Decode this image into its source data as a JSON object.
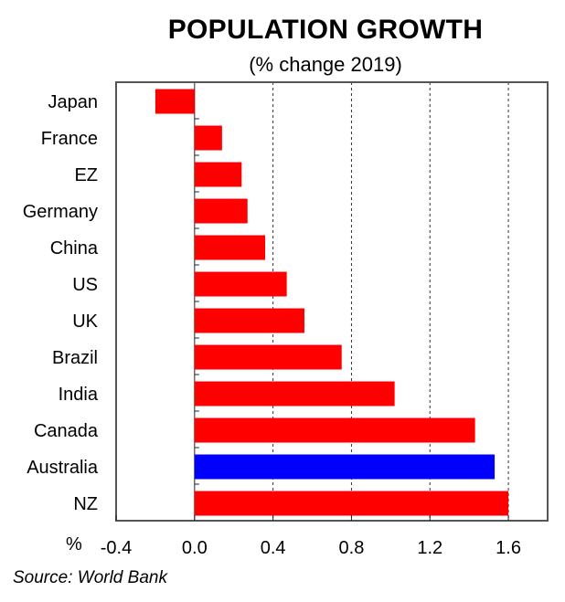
{
  "title": "POPULATION GROWTH",
  "subtitle": "(% change 2019)",
  "source": "Source: World Bank",
  "chart_data": {
    "type": "bar",
    "orientation": "horizontal",
    "title": "POPULATION GROWTH",
    "subtitle": "(% change 2019)",
    "xlabel": "%",
    "ylabel": "",
    "xlim": [
      -0.4,
      1.8
    ],
    "xticks": [
      -0.4,
      0.0,
      0.4,
      0.8,
      1.2,
      1.6
    ],
    "xtick_labels": [
      "-0.4",
      "0.0",
      "0.4",
      "0.8",
      "1.2",
      "1.6"
    ],
    "grid": "vertical dashed",
    "categories": [
      "Japan",
      "France",
      "EZ",
      "Germany",
      "China",
      "US",
      "UK",
      "Brazil",
      "India",
      "Canada",
      "Australia",
      "NZ"
    ],
    "values": [
      -0.2,
      0.14,
      0.24,
      0.27,
      0.36,
      0.47,
      0.56,
      0.75,
      1.02,
      1.43,
      1.53,
      1.6
    ],
    "highlight": "Australia",
    "colors": {
      "default": "#ff0000",
      "highlight": "#0000ff",
      "axis": "#555555"
    }
  }
}
